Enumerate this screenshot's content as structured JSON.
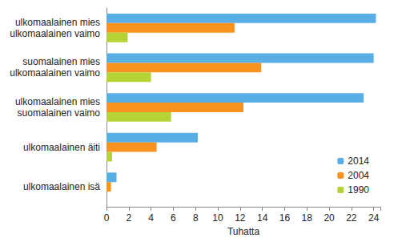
{
  "chart_data": {
    "type": "bar",
    "orientation": "horizontal",
    "xlabel": "Tuhatta",
    "categories": [
      "ulkomaalainen mies\nulkomaalainen vaimo",
      "suomalainen mies\nulkomaalainen vaimo",
      "ulkomaalainen mies\nsuomalainen vaimo",
      "ulkomaalainen äiti",
      "ulkomaalainen isä"
    ],
    "series": [
      {
        "name": "2014",
        "color": "#5aaee6",
        "values": [
          24.2,
          24.0,
          23.1,
          8.2,
          0.9
        ]
      },
      {
        "name": "2004",
        "color": "#f7931e",
        "values": [
          11.5,
          13.9,
          12.3,
          4.5,
          0.4
        ]
      },
      {
        "name": "1990",
        "color": "#b5d335",
        "values": [
          1.9,
          4.0,
          5.8,
          0.5,
          0
        ]
      }
    ],
    "xlim": [
      0,
      24.6
    ],
    "xticks": [
      0,
      2,
      4,
      6,
      8,
      10,
      12,
      14,
      16,
      18,
      20,
      22,
      24
    ],
    "grid": false,
    "legend": "lower right"
  }
}
